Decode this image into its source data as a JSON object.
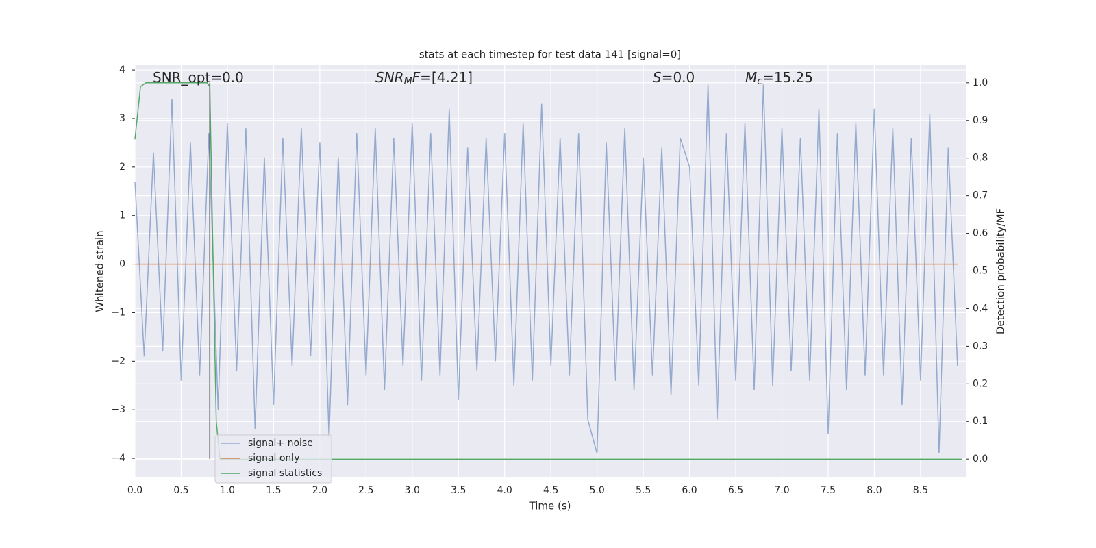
{
  "chart_data": {
    "type": "line",
    "title": "stats at each timestep for test data 141 [signal=0]",
    "xlabel": "Time (s)",
    "ylabel": "Whitened strain",
    "y2label": "Detection probability/MF",
    "annotations": [
      [
        {
          "text": "SNR_opt=0.0",
          "italic": false
        }
      ],
      [
        {
          "text": "SNR",
          "italic": true
        },
        {
          "text": "M",
          "italic": true,
          "sub": true
        },
        {
          "text": "F",
          "italic": true
        },
        {
          "text": "=[4.21]",
          "italic": false
        }
      ],
      [
        {
          "text": "S",
          "italic": true
        },
        {
          "text": "=0.0",
          "italic": false
        }
      ],
      [
        {
          "text": "M",
          "italic": true
        },
        {
          "text": "c",
          "italic": true,
          "sub": true
        },
        {
          "text": "=15.25",
          "italic": false
        }
      ]
    ],
    "xlim": [
      0,
      8.99
    ],
    "ylim": [
      -4.38,
      4.1
    ],
    "y2lim": [
      -0.047,
      1.047
    ],
    "xticks": [
      {
        "value": 0,
        "label": "0.0"
      },
      {
        "value": 0.5,
        "label": "0.5"
      },
      {
        "value": 1,
        "label": "1.0"
      },
      {
        "value": 1.5,
        "label": "1.5"
      },
      {
        "value": 2,
        "label": "2.0"
      },
      {
        "value": 2.5,
        "label": "2.5"
      },
      {
        "value": 3,
        "label": "3.0"
      },
      {
        "value": 3.5,
        "label": "3.5"
      },
      {
        "value": 4,
        "label": "4.0"
      },
      {
        "value": 4.5,
        "label": "4.5"
      },
      {
        "value": 5,
        "label": "5.0"
      },
      {
        "value": 5.5,
        "label": "5.5"
      },
      {
        "value": 6,
        "label": "6.0"
      },
      {
        "value": 6.5,
        "label": "6.5"
      },
      {
        "value": 7,
        "label": "7.0"
      },
      {
        "value": 7.5,
        "label": "7.5"
      },
      {
        "value": 8,
        "label": "8.0"
      },
      {
        "value": 8.5,
        "label": "8.5"
      }
    ],
    "yticks": [
      {
        "value": -4,
        "label": "−4"
      },
      {
        "value": -3,
        "label": "−3"
      },
      {
        "value": -2,
        "label": "−2"
      },
      {
        "value": -1,
        "label": "−1"
      },
      0,
      1,
      2,
      3,
      4
    ],
    "y2ticks": [
      {
        "value": 0,
        "label": "0.0"
      },
      {
        "value": 0.1,
        "label": "0.1"
      },
      {
        "value": 0.2,
        "label": "0.2"
      },
      {
        "value": 0.3,
        "label": "0.3"
      },
      {
        "value": 0.4,
        "label": "0.4"
      },
      {
        "value": 0.5,
        "label": "0.5"
      },
      {
        "value": 0.6,
        "label": "0.6"
      },
      {
        "value": 0.7,
        "label": "0.7"
      },
      {
        "value": 0.8,
        "label": "0.8"
      },
      {
        "value": 0.9,
        "label": "0.9"
      },
      {
        "value": 1,
        "label": "1.0"
      }
    ],
    "grid": true,
    "legend_loc": "lower left",
    "vline": {
      "x": 0.81,
      "ymin": 0,
      "ymax": 1,
      "axis": "y2",
      "color": "#444444"
    },
    "series": [
      {
        "name": "signal+ noise",
        "color": "#4c72b0",
        "opacity": 0.55,
        "x": [
          0,
          0.1,
          0.2,
          0.3,
          0.4,
          0.5,
          0.6,
          0.7,
          0.8,
          0.9,
          1,
          1.1,
          1.2,
          1.3,
          1.4,
          1.5,
          1.6,
          1.7,
          1.8,
          1.9,
          2,
          2.1,
          2.2,
          2.3,
          2.4,
          2.5,
          2.6,
          2.7,
          2.8,
          2.9,
          3,
          3.1,
          3.2,
          3.3,
          3.4,
          3.5,
          3.6,
          3.7,
          3.8,
          3.9,
          4,
          4.1,
          4.2,
          4.3,
          4.4,
          4.5,
          4.6,
          4.7,
          4.8,
          4.9,
          5,
          5.1,
          5.2,
          5.3,
          5.4,
          5.5,
          5.6,
          5.7,
          5.8,
          5.9,
          6,
          6.1,
          6.2,
          6.3,
          6.4,
          6.5,
          6.6,
          6.7,
          6.8,
          6.9,
          7,
          7.1,
          7.2,
          7.3,
          7.4,
          7.5,
          7.6,
          7.7,
          7.8,
          7.9,
          8,
          8.1,
          8.2,
          8.3,
          8.4,
          8.5,
          8.6,
          8.7,
          8.8,
          8.9
        ],
        "values": [
          1.7,
          -1.9,
          2.3,
          -1.8,
          3.4,
          -2.4,
          2.5,
          -2.3,
          2.7,
          -3.0,
          2.9,
          -2.2,
          2.8,
          -3.4,
          2.2,
          -2.9,
          2.6,
          -2.1,
          2.8,
          -1.9,
          2.5,
          -3.6,
          2.2,
          -2.9,
          2.7,
          -2.3,
          2.8,
          -2.6,
          2.6,
          -2.1,
          2.9,
          -2.4,
          2.7,
          -2.3,
          3.2,
          -2.8,
          2.4,
          -2.2,
          2.6,
          -2.0,
          2.7,
          -2.5,
          2.9,
          -2.4,
          3.3,
          -2.1,
          2.6,
          -2.3,
          2.7,
          -3.2,
          -3.9,
          2.5,
          -2.4,
          2.8,
          -2.6,
          2.2,
          -2.3,
          2.4,
          -2.7,
          2.6,
          2.0,
          -2.5,
          3.7,
          -3.2,
          2.7,
          -2.4,
          2.9,
          -2.6,
          3.7,
          -2.5,
          2.8,
          -2.2,
          2.6,
          -2.4,
          3.2,
          -3.5,
          2.7,
          -2.6,
          2.9,
          -2.3,
          3.2,
          -2.3,
          2.8,
          -2.9,
          2.6,
          -2.4,
          3.1,
          -3.9,
          2.4,
          -2.1
        ]
      },
      {
        "name": "signal only",
        "color": "#dd8452",
        "opacity": 1,
        "x": [
          0,
          8.9
        ],
        "values": [
          0,
          0
        ]
      },
      {
        "name": "signal statistics",
        "color": "#55a868",
        "opacity": 1,
        "axis": "y2",
        "x": [
          0,
          0.06,
          0.12,
          0.2,
          0.4,
          0.6,
          0.78,
          0.81,
          0.84,
          0.88,
          0.92,
          8.95
        ],
        "values": [
          0.85,
          0.99,
          1.0,
          1.0,
          1.0,
          1.0,
          1.0,
          0.99,
          0.6,
          0.1,
          0.0,
          0.0
        ]
      }
    ]
  }
}
